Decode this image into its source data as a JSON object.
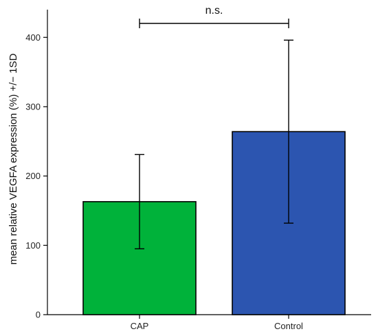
{
  "chart_data": {
    "type": "bar",
    "categories": [
      "CAP",
      "Control"
    ],
    "values": [
      163,
      264
    ],
    "error_low": [
      95,
      132
    ],
    "error_high": [
      231,
      396
    ],
    "bar_colors": [
      "#00b23a",
      "#2c55b0"
    ],
    "ylabel": "mean relative VEGFA expression (%) +/− 1SD",
    "xlabel": "",
    "ylim": [
      0,
      440
    ],
    "yticks": [
      0,
      100,
      200,
      300,
      400
    ],
    "grid": false,
    "significance": {
      "between": [
        "CAP",
        "Control"
      ],
      "label": "n.s."
    }
  }
}
